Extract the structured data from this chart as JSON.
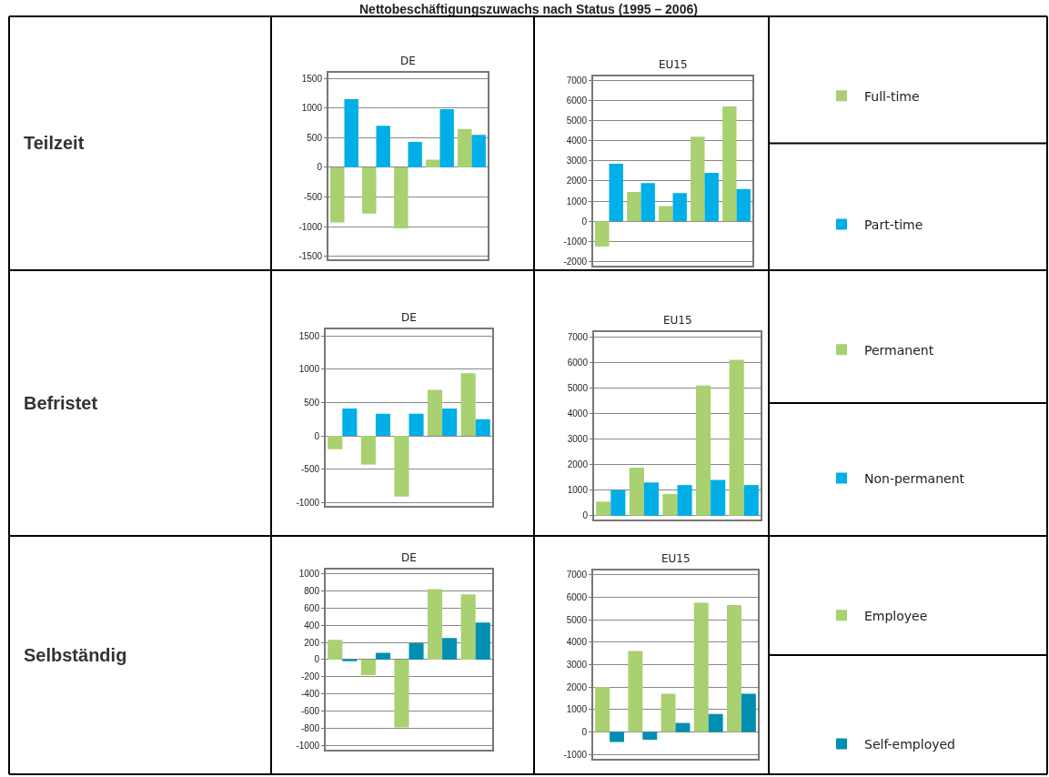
{
  "chart_data": [
    {
      "type": "bar",
      "title": "DE",
      "annotations": [
        "Nettobeschäftigungszuwachs nach Status (1995 – 2006)",
        "Teilzeit"
      ],
      "categories": [
        null,
        null,
        null,
        null,
        null
      ],
      "series": [
        {
          "color": "#a9d071",
          "values": [
            -930,
            -780,
            -1030,
            130,
            650
          ]
        },
        {
          "color": "#00aee8",
          "values": [
            1150,
            700,
            430,
            980,
            550
          ]
        }
      ],
      "ylim": [
        -1550,
        1600
      ],
      "yticks": [
        -1500,
        -1000,
        -500,
        0,
        500,
        1000,
        1500
      ],
      "grid": "y",
      "tick_labels": "y"
    },
    {
      "type": "bar",
      "title": "EU15",
      "categories": [
        null,
        null,
        null,
        null,
        null
      ],
      "series": [
        {
          "name": "Full-time",
          "color": "#a9d071",
          "values": [
            -1250,
            1450,
            750,
            4200,
            5700
          ]
        },
        {
          "name": "Part-time",
          "color": "#00aee8",
          "values": [
            2850,
            1900,
            1400,
            2400,
            1600
          ]
        }
      ],
      "ylim": [
        -2200,
        7200
      ],
      "yticks": [
        -2000,
        -1000,
        0,
        1000,
        2000,
        3000,
        4000,
        5000,
        6000,
        7000
      ],
      "grid": "y",
      "tick_labels": "y",
      "legend": "right"
    },
    {
      "type": "bar",
      "title": "DE",
      "annotations": [
        "Befristet"
      ],
      "categories": [
        null,
        null,
        null,
        null,
        null
      ],
      "series": [
        {
          "color": "#a9d071",
          "values": [
            -200,
            -430,
            -910,
            690,
            940
          ]
        },
        {
          "color": "#00aee8",
          "values": [
            410,
            330,
            330,
            410,
            250
          ]
        }
      ],
      "ylim": [
        -1050,
        1600
      ],
      "yticks": [
        -1000,
        -500,
        0,
        500,
        1000,
        1500
      ],
      "grid": "y",
      "tick_labels": "y"
    },
    {
      "type": "bar",
      "title": "EU15",
      "categories": [
        null,
        null,
        null,
        null,
        null
      ],
      "series": [
        {
          "name": "Permanent",
          "color": "#a9d071",
          "values": [
            550,
            1880,
            850,
            5100,
            6100
          ]
        },
        {
          "name": "Non-permanent",
          "color": "#00aee8",
          "values": [
            1000,
            1300,
            1200,
            1400,
            1200
          ]
        }
      ],
      "ylim": [
        -150,
        7200
      ],
      "yticks": [
        0,
        1000,
        2000,
        3000,
        4000,
        5000,
        6000,
        7000
      ],
      "grid": "y",
      "tick_labels": "y",
      "legend": "right"
    },
    {
      "type": "bar",
      "title": "DE",
      "annotations": [
        "Selbständig"
      ],
      "categories": [
        null,
        null,
        null,
        null,
        null
      ],
      "series": [
        {
          "color": "#a9d071",
          "values": [
            230,
            -180,
            -790,
            820,
            760
          ]
        },
        {
          "color": "#008fb0",
          "values": [
            -20,
            80,
            190,
            250,
            430
          ]
        }
      ],
      "ylim": [
        -1050,
        1050
      ],
      "yticks": [
        -1000,
        -800,
        -600,
        -400,
        -200,
        0,
        200,
        400,
        600,
        800,
        1000
      ],
      "grid": "y",
      "tick_labels": "y"
    },
    {
      "type": "bar",
      "title": "EU15",
      "categories": [
        null,
        null,
        null,
        null,
        null
      ],
      "series": [
        {
          "name": "Employee",
          "color": "#a9d071",
          "values": [
            2000,
            3600,
            1700,
            5750,
            5650
          ]
        },
        {
          "name": "Self-employed",
          "color": "#008fb0",
          "values": [
            -450,
            -350,
            400,
            800,
            1700
          ]
        }
      ],
      "ylim": [
        -1200,
        7200
      ],
      "yticks": [
        -1000,
        0,
        1000,
        2000,
        3000,
        4000,
        5000,
        6000,
        7000
      ],
      "grid": "y",
      "tick_labels": "y",
      "legend": "right"
    }
  ]
}
